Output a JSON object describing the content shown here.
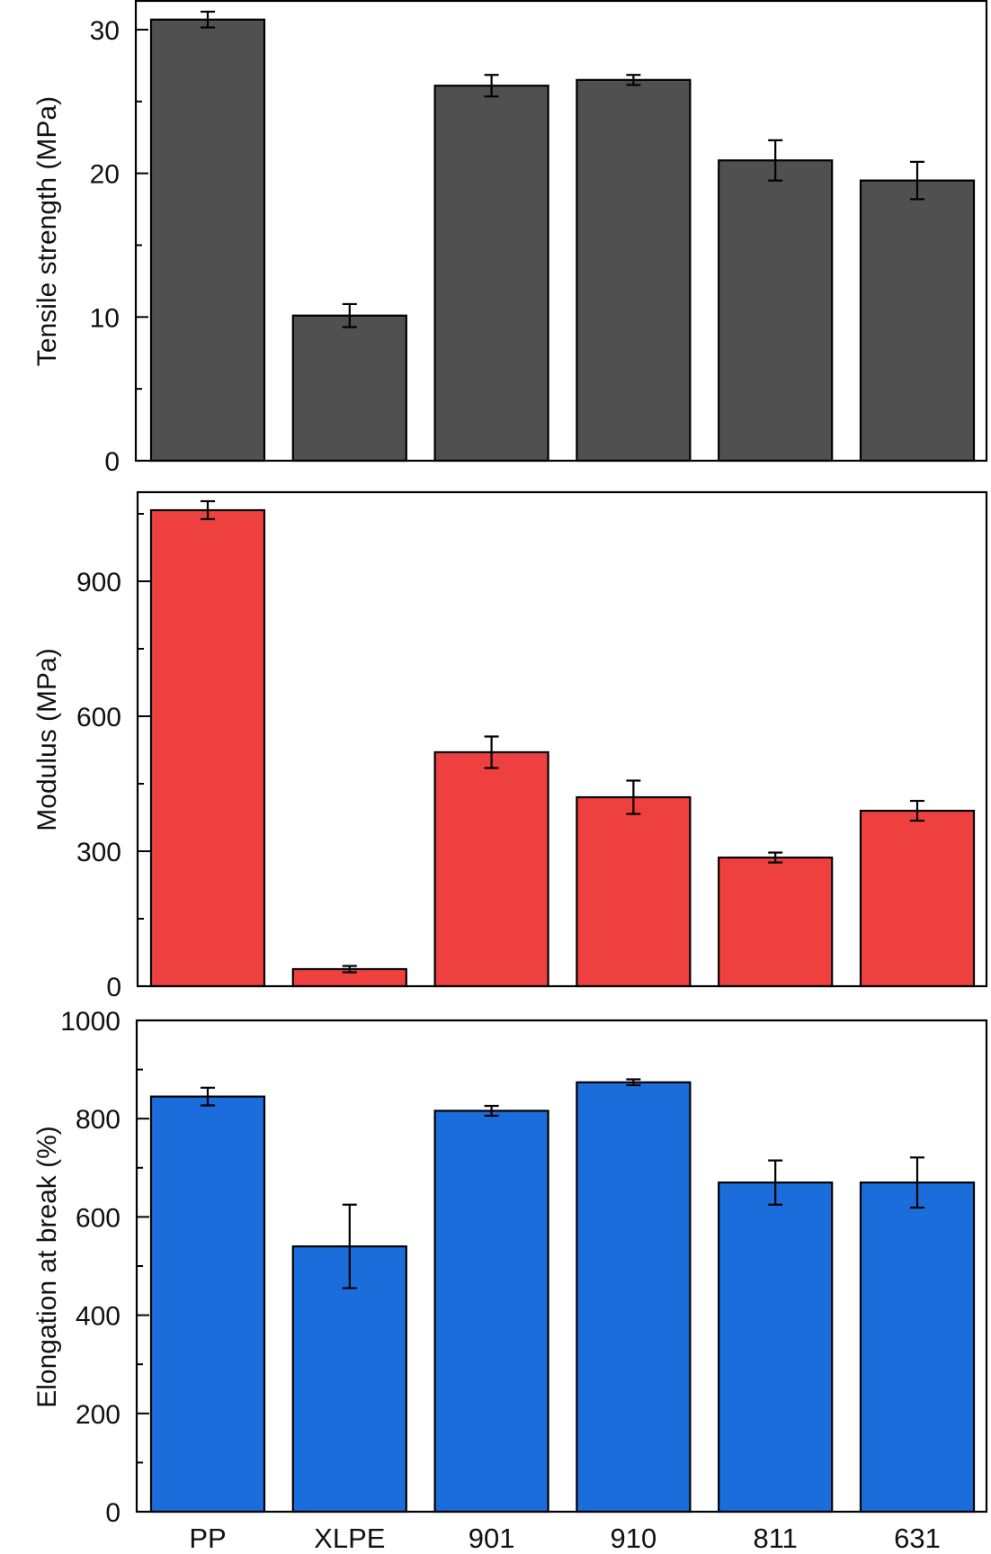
{
  "chart_data": [
    {
      "type": "bar",
      "title": "",
      "xlabel": "",
      "ylabel": "Tensile strength (MPa)",
      "categories": [
        "PP",
        "XLPE",
        "901",
        "910",
        "811",
        "631"
      ],
      "values": [
        30.7,
        10.1,
        26.1,
        26.5,
        20.9,
        19.5
      ],
      "errors": [
        0.55,
        0.8,
        0.75,
        0.35,
        1.4,
        1.3
      ],
      "ylim": [
        0,
        32
      ],
      "yticks": [
        0,
        10,
        20,
        30
      ],
      "yticklabels": [
        "0",
        "10",
        "20",
        "30"
      ],
      "minor_yticks": [
        5,
        15,
        25
      ],
      "bar_color": "#505050",
      "show_xticklabels": false,
      "grid": false
    },
    {
      "type": "bar",
      "title": "",
      "xlabel": "",
      "ylabel": "Modulus (MPa)",
      "categories": [
        "PP",
        "XLPE",
        "901",
        "910",
        "811",
        "631"
      ],
      "values": [
        1058,
        38,
        520,
        420,
        286,
        390
      ],
      "errors": [
        20,
        7,
        35,
        37,
        11,
        22
      ],
      "ylim": [
        0,
        1098
      ],
      "yticks": [
        0,
        300,
        600,
        900
      ],
      "yticklabels": [
        "0",
        "300",
        "600",
        "900"
      ],
      "minor_yticks": [
        150,
        450,
        750,
        1050
      ],
      "bar_color": "#ef4040",
      "show_xticklabels": false,
      "grid": false
    },
    {
      "type": "bar",
      "title": "",
      "xlabel": "",
      "ylabel": "Elongation at break (%)",
      "categories": [
        "PP",
        "XLPE",
        "901",
        "910",
        "811",
        "631"
      ],
      "values": [
        845,
        540,
        816,
        874,
        670,
        670
      ],
      "errors": [
        18,
        85,
        10,
        6,
        45,
        51
      ],
      "ylim": [
        0,
        1000
      ],
      "yticks": [
        0,
        200,
        400,
        600,
        800,
        1000
      ],
      "yticklabels": [
        "0",
        "200",
        "400",
        "600",
        "800",
        "1000"
      ],
      "minor_yticks": [
        100,
        300,
        500,
        700,
        900
      ],
      "bar_color": "#1c6ddc",
      "show_xticklabels": true,
      "grid": false
    }
  ]
}
